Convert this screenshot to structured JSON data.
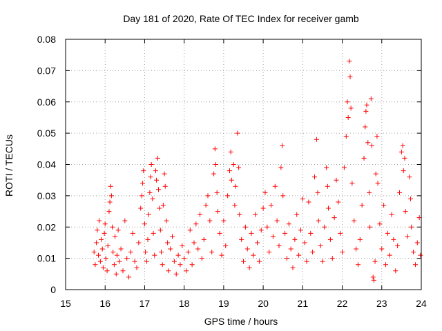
{
  "colors": {
    "series": "#ff0000",
    "grid": "#a0a0a0",
    "axis": "#000000"
  },
  "chart_data": {
    "type": "scatter",
    "title": "Day 181 of 2020, Rate Of TEC Index for receiver gamb",
    "xlabel": "GPS time / hours",
    "ylabel": "ROTI / TECUs",
    "xlim": [
      15,
      24
    ],
    "ylim": [
      0,
      0.08
    ],
    "xticks": [
      15,
      16,
      17,
      18,
      19,
      20,
      21,
      22,
      23,
      24
    ],
    "xtick_labels": [
      "15",
      "16",
      "17",
      "18",
      "19",
      "20",
      "21",
      "22",
      "23",
      "24"
    ],
    "yticks": [
      0,
      0.01,
      0.02,
      0.03,
      0.04,
      0.05,
      0.06,
      0.07,
      0.08
    ],
    "ytick_labels": [
      "0",
      "0.01",
      "0.02",
      "0.03",
      "0.04",
      "0.05",
      "0.06",
      "0.07",
      "0.08"
    ],
    "grid": true,
    "marker": "+",
    "series": [
      {
        "name": "gamb",
        "points": [
          [
            15.72,
            0.012
          ],
          [
            15.75,
            0.008
          ],
          [
            15.78,
            0.015
          ],
          [
            15.8,
            0.019
          ],
          [
            15.83,
            0.011
          ],
          [
            15.85,
            0.022
          ],
          [
            15.88,
            0.009
          ],
          [
            15.9,
            0.016
          ],
          [
            15.93,
            0.013
          ],
          [
            15.95,
            0.007
          ],
          [
            15.98,
            0.018
          ],
          [
            16.0,
            0.021
          ],
          [
            16.02,
            0.01
          ],
          [
            16.05,
            0.006
          ],
          [
            16.07,
            0.014
          ],
          [
            16.1,
            0.025
          ],
          [
            16.12,
            0.028
          ],
          [
            16.14,
            0.033
          ],
          [
            16.16,
            0.03
          ],
          [
            16.18,
            0.02
          ],
          [
            16.2,
            0.012
          ],
          [
            16.23,
            0.008
          ],
          [
            16.25,
            0.017
          ],
          [
            16.28,
            0.005
          ],
          [
            16.3,
            0.011
          ],
          [
            16.33,
            0.019
          ],
          [
            16.36,
            0.009
          ],
          [
            16.4,
            0.013
          ],
          [
            16.45,
            0.006
          ],
          [
            16.5,
            0.022
          ],
          [
            16.55,
            0.01
          ],
          [
            16.6,
            0.004
          ],
          [
            16.65,
            0.012
          ],
          [
            16.7,
            0.018
          ],
          [
            16.75,
            0.009
          ],
          [
            16.8,
            0.007
          ],
          [
            16.85,
            0.015
          ],
          [
            16.9,
            0.026
          ],
          [
            16.93,
            0.03
          ],
          [
            16.95,
            0.034
          ],
          [
            16.97,
            0.038
          ],
          [
            17.0,
            0.021
          ],
          [
            17.02,
            0.012
          ],
          [
            17.05,
            0.009
          ],
          [
            17.08,
            0.016
          ],
          [
            17.1,
            0.024
          ],
          [
            17.13,
            0.031
          ],
          [
            17.15,
            0.036
          ],
          [
            17.17,
            0.04
          ],
          [
            17.2,
            0.029
          ],
          [
            17.22,
            0.018
          ],
          [
            17.25,
            0.011
          ],
          [
            17.28,
            0.038
          ],
          [
            17.3,
            0.035
          ],
          [
            17.33,
            0.042
          ],
          [
            17.35,
            0.032
          ],
          [
            17.37,
            0.026
          ],
          [
            17.4,
            0.019
          ],
          [
            17.42,
            0.012
          ],
          [
            17.45,
            0.008
          ],
          [
            17.47,
            0.027
          ],
          [
            17.5,
            0.037
          ],
          [
            17.52,
            0.033
          ],
          [
            17.55,
            0.022
          ],
          [
            17.58,
            0.015
          ],
          [
            17.6,
            0.006
          ],
          [
            17.65,
            0.013
          ],
          [
            17.7,
            0.017
          ],
          [
            17.75,
            0.009
          ],
          [
            17.8,
            0.005
          ],
          [
            17.85,
            0.011
          ],
          [
            17.9,
            0.008
          ],
          [
            17.95,
            0.014
          ],
          [
            18.0,
            0.01
          ],
          [
            18.05,
            0.006
          ],
          [
            18.1,
            0.012
          ],
          [
            18.15,
            0.019
          ],
          [
            18.2,
            0.008
          ],
          [
            18.25,
            0.015
          ],
          [
            18.3,
            0.021
          ],
          [
            18.35,
            0.013
          ],
          [
            18.4,
            0.024
          ],
          [
            18.45,
            0.01
          ],
          [
            18.5,
            0.016
          ],
          [
            18.55,
            0.027
          ],
          [
            18.6,
            0.03
          ],
          [
            18.65,
            0.022
          ],
          [
            18.7,
            0.012
          ],
          [
            18.75,
            0.037
          ],
          [
            18.78,
            0.045
          ],
          [
            18.8,
            0.04
          ],
          [
            18.83,
            0.031
          ],
          [
            18.85,
            0.025
          ],
          [
            18.9,
            0.018
          ],
          [
            18.95,
            0.011
          ],
          [
            19.0,
            0.022
          ],
          [
            19.05,
            0.014
          ],
          [
            19.1,
            0.03
          ],
          [
            19.15,
            0.038
          ],
          [
            19.18,
            0.044
          ],
          [
            19.2,
            0.035
          ],
          [
            19.25,
            0.04
          ],
          [
            19.28,
            0.027
          ],
          [
            19.3,
            0.033
          ],
          [
            19.35,
            0.05
          ],
          [
            19.38,
            0.039
          ],
          [
            19.4,
            0.024
          ],
          [
            19.45,
            0.016
          ],
          [
            19.5,
            0.009
          ],
          [
            19.55,
            0.02
          ],
          [
            19.6,
            0.013
          ],
          [
            19.65,
            0.007
          ],
          [
            19.7,
            0.018
          ],
          [
            19.75,
            0.011
          ],
          [
            19.8,
            0.024
          ],
          [
            19.85,
            0.015
          ],
          [
            19.9,
            0.009
          ],
          [
            19.95,
            0.019
          ],
          [
            20.0,
            0.026
          ],
          [
            20.05,
            0.031
          ],
          [
            20.1,
            0.02
          ],
          [
            20.15,
            0.012
          ],
          [
            20.2,
            0.027
          ],
          [
            20.25,
            0.017
          ],
          [
            20.3,
            0.033
          ],
          [
            20.35,
            0.022
          ],
          [
            20.4,
            0.014
          ],
          [
            20.45,
            0.039
          ],
          [
            20.48,
            0.046
          ],
          [
            20.5,
            0.03
          ],
          [
            20.55,
            0.018
          ],
          [
            20.6,
            0.01
          ],
          [
            20.65,
            0.021
          ],
          [
            20.7,
            0.013
          ],
          [
            20.75,
            0.007
          ],
          [
            20.8,
            0.016
          ],
          [
            20.85,
            0.024
          ],
          [
            20.9,
            0.011
          ],
          [
            20.95,
            0.019
          ],
          [
            21.0,
            0.029
          ],
          [
            21.05,
            0.015
          ],
          [
            21.1,
            0.009
          ],
          [
            21.15,
            0.028
          ],
          [
            21.2,
            0.018
          ],
          [
            21.25,
            0.012
          ],
          [
            21.3,
            0.036
          ],
          [
            21.35,
            0.048
          ],
          [
            21.38,
            0.031
          ],
          [
            21.4,
            0.022
          ],
          [
            21.45,
            0.014
          ],
          [
            21.5,
            0.009
          ],
          [
            21.55,
            0.02
          ],
          [
            21.6,
            0.039
          ],
          [
            21.63,
            0.033
          ],
          [
            21.65,
            0.026
          ],
          [
            21.7,
            0.016
          ],
          [
            21.75,
            0.01
          ],
          [
            21.8,
            0.023
          ],
          [
            21.85,
            0.035
          ],
          [
            21.9,
            0.028
          ],
          [
            21.95,
            0.018
          ],
          [
            22.0,
            0.012
          ],
          [
            22.05,
            0.039
          ],
          [
            22.1,
            0.049
          ],
          [
            22.13,
            0.06
          ],
          [
            22.15,
            0.055
          ],
          [
            22.18,
            0.073
          ],
          [
            22.2,
            0.068
          ],
          [
            22.22,
            0.058
          ],
          [
            22.25,
            0.034
          ],
          [
            22.3,
            0.022
          ],
          [
            22.35,
            0.013
          ],
          [
            22.4,
            0.008
          ],
          [
            22.45,
            0.016
          ],
          [
            22.5,
            0.027
          ],
          [
            22.55,
            0.042
          ],
          [
            22.58,
            0.052
          ],
          [
            22.6,
            0.057
          ],
          [
            22.62,
            0.059
          ],
          [
            22.65,
            0.047
          ],
          [
            22.68,
            0.031
          ],
          [
            22.7,
            0.02
          ],
          [
            22.73,
            0.061
          ],
          [
            22.75,
            0.046
          ],
          [
            22.78,
            0.004
          ],
          [
            22.8,
            0.003
          ],
          [
            22.83,
            0.009
          ],
          [
            22.85,
            0.037
          ],
          [
            22.88,
            0.049
          ],
          [
            22.9,
            0.034
          ],
          [
            22.95,
            0.021
          ],
          [
            23.0,
            0.013
          ],
          [
            23.05,
            0.027
          ],
          [
            23.1,
            0.008
          ],
          [
            23.15,
            0.018
          ],
          [
            23.2,
            0.011
          ],
          [
            23.25,
            0.024
          ],
          [
            23.3,
            0.016
          ],
          [
            23.35,
            0.006
          ],
          [
            23.4,
            0.014
          ],
          [
            23.45,
            0.031
          ],
          [
            23.5,
            0.044
          ],
          [
            23.53,
            0.046
          ],
          [
            23.55,
            0.038
          ],
          [
            23.58,
            0.042
          ],
          [
            23.6,
            0.025
          ],
          [
            23.65,
            0.017
          ],
          [
            23.7,
            0.036
          ],
          [
            23.73,
            0.029
          ],
          [
            23.75,
            0.02
          ],
          [
            23.8,
            0.012
          ],
          [
            23.85,
            0.008
          ],
          [
            23.9,
            0.015
          ],
          [
            23.95,
            0.023
          ],
          [
            23.98,
            0.011
          ]
        ]
      }
    ]
  }
}
